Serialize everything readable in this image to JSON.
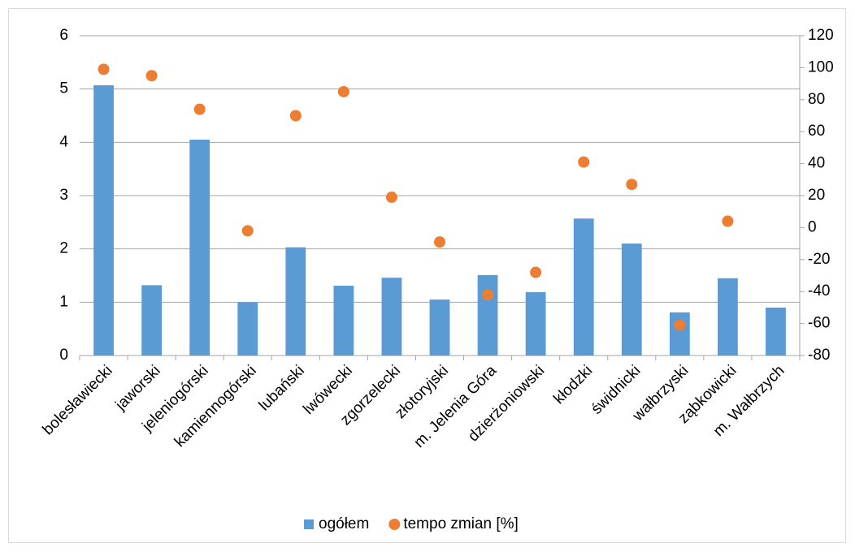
{
  "chart_data": {
    "type": "bar_scatter",
    "categories": [
      "bolesławiecki",
      "jaworski",
      "jeleniogórski",
      "kamiennogórski",
      "lubański",
      "lwówecki",
      "zgorzelecki",
      "złotoryjski",
      "m. Jelenia Góra",
      "dzierżoniowski",
      "kłodzki",
      "świdnicki",
      "wałbrzyski",
      "ząbkowicki",
      "m. Wałbrzych"
    ],
    "series": [
      {
        "name": "ogółem",
        "color": "#5b9bd5",
        "values": [
          5.07,
          1.32,
          4.05,
          1.0,
          2.03,
          1.31,
          1.46,
          1.05,
          1.51,
          1.19,
          2.57,
          2.1,
          0.81,
          1.45,
          0.9
        ]
      },
      {
        "name": "tempo zmian [%]",
        "color": "#ed7d31",
        "axis": "y2",
        "values": [
          99,
          95,
          74,
          -2,
          70,
          85,
          19,
          -9,
          -42,
          -28,
          41,
          27,
          -61,
          4,
          null
        ]
      }
    ],
    "ylim": [
      0,
      6
    ],
    "yticks": [
      0,
      1,
      2,
      3,
      4,
      5,
      6
    ],
    "y2lim": [
      -80,
      120
    ],
    "y2ticks": [
      -80,
      -60,
      -40,
      -20,
      0,
      20,
      40,
      60,
      80,
      100,
      120
    ],
    "grid": true,
    "legend": "bottom"
  }
}
